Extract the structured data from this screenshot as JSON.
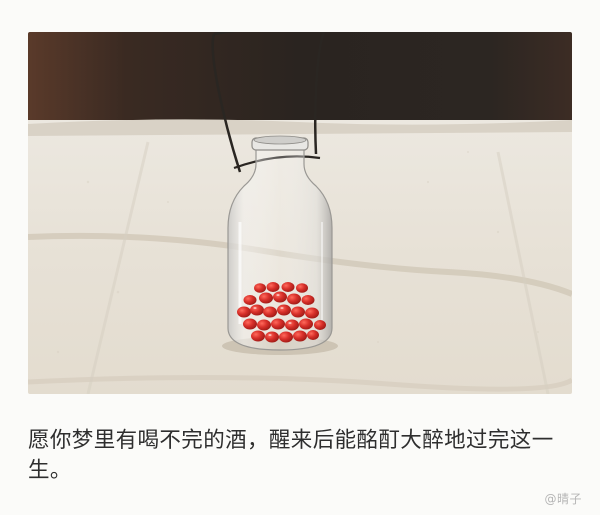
{
  "caption": {
    "text": "愿你梦里有喝不完的酒，醒来后能酩酊大醉地过完这一生。"
  },
  "watermark": {
    "text": "@晴子"
  },
  "photo": {
    "subject": "glass bottle with wire handle holding red beans on linen cloth",
    "colors": {
      "background_dark": "#2c2622",
      "cloth": "#e9e3d8",
      "beans": "#d8302a"
    }
  }
}
